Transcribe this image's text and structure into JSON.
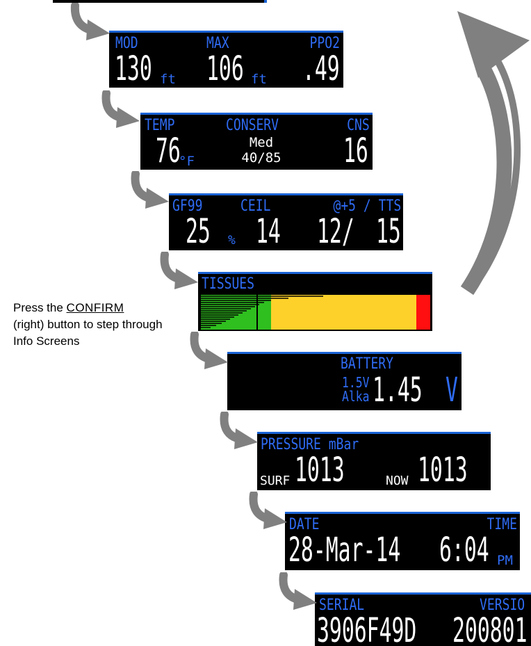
{
  "instruction": {
    "pre": "Press the",
    "confirm_word": "CONFIRM",
    "post": "(right) button to step through Info Screens"
  },
  "screens": {
    "mod": {
      "labels": [
        "MOD",
        "MAX",
        "PPO2"
      ],
      "mod_value": "130",
      "mod_unit": "ft",
      "max_value": "106",
      "max_unit": "ft",
      "ppo2_value": ".49"
    },
    "temp": {
      "labels": [
        "TEMP",
        "CONSERV",
        "CNS"
      ],
      "temp_value": "76",
      "temp_unit": "°F",
      "conserv_level": "Med",
      "conserv_gf": "40/85",
      "cns_value": "16"
    },
    "gf": {
      "labels": [
        "GF99",
        "CEIL",
        "@+5 / TTS"
      ],
      "gf99_value": "25",
      "gf99_unit": "%",
      "ceil_value": "14",
      "at5_value": "12/",
      "tts_value": "15"
    },
    "tissues": {
      "label": "TISSUES",
      "colors": {
        "green": "#2fbf1f",
        "yellow": "#fdd12a",
        "red": "#ff0f0f"
      }
    },
    "battery": {
      "label": "BATTERY",
      "type_voltage": "1.5V",
      "type_name": "Alka",
      "value": "1.45",
      "unit": "V"
    },
    "pressure": {
      "label": "PRESSURE mBar",
      "surf_label": "SURF",
      "surf_value": "1013",
      "now_label": "NOW",
      "now_value": "1013"
    },
    "datetime": {
      "date_label": "DATE",
      "time_label": "TIME",
      "date_value": "28-Mar-14",
      "time_value": "6:04",
      "ampm": "PM"
    },
    "serial": {
      "serial_label": "SERIAL",
      "version_label": "VERSIO",
      "serial_value": "3906F49D",
      "version_value": "200801"
    }
  },
  "accent_color": "#2f6cf5",
  "arrow_color": "#808080"
}
